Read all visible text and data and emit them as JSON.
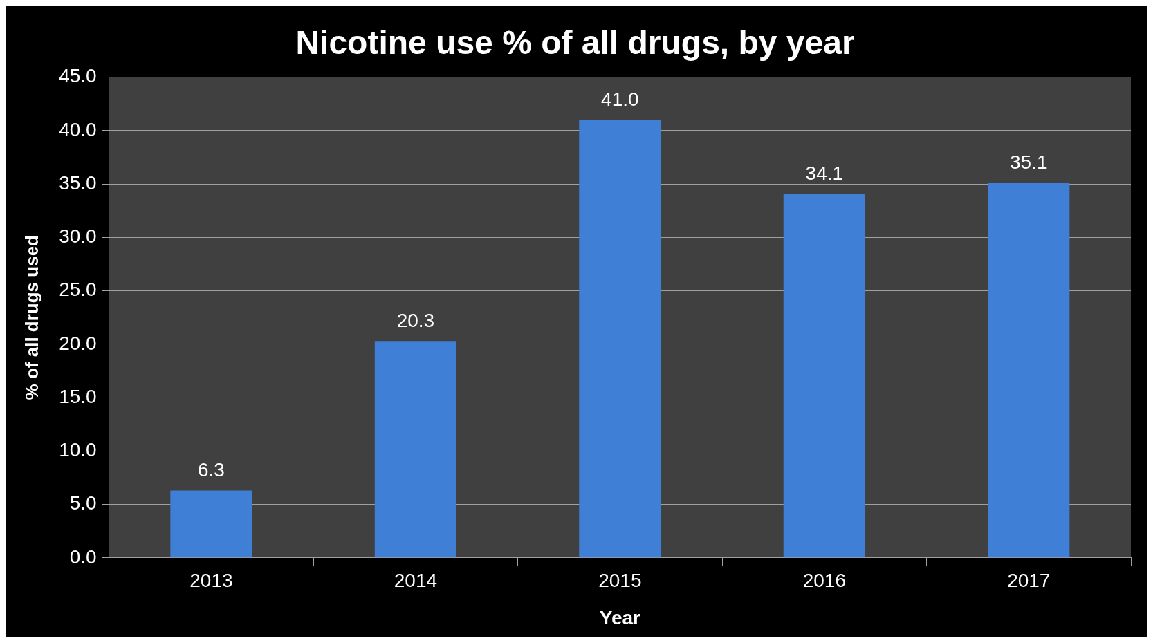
{
  "chart_data": {
    "type": "bar",
    "title": "Nicotine use % of all drugs, by year",
    "xlabel": "Year",
    "ylabel": "% of all drugs used",
    "categories": [
      "2013",
      "2014",
      "2015",
      "2016",
      "2017"
    ],
    "values": [
      6.3,
      20.3,
      41.0,
      34.1,
      35.1
    ],
    "value_labels": [
      "6.3",
      "20.3",
      "41.0",
      "34.1",
      "35.1"
    ],
    "color": "#3f7fd6",
    "ylim": [
      0,
      45
    ],
    "yticks": [
      {
        "value": 0,
        "label": "0.0"
      },
      {
        "value": 5,
        "label": "5.0"
      },
      {
        "value": 10,
        "label": "10.0"
      },
      {
        "value": 15,
        "label": "15.0"
      },
      {
        "value": 20,
        "label": "20.0"
      },
      {
        "value": 25,
        "label": "25.0"
      },
      {
        "value": 30,
        "label": "30.0"
      },
      {
        "value": 35,
        "label": "35.0"
      },
      {
        "value": 40,
        "label": "40.0"
      },
      {
        "value": 45,
        "label": "45.0"
      }
    ],
    "grid": "y"
  }
}
